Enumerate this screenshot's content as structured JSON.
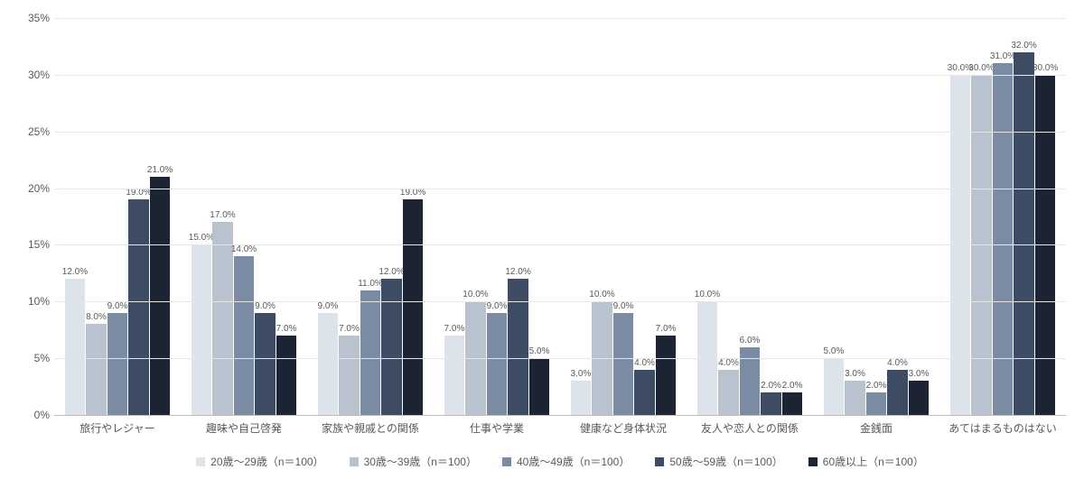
{
  "chart": {
    "type": "bar",
    "ylim": [
      0,
      35
    ],
    "ytick_step": 5,
    "y_suffix": "%",
    "grid_color": "#e6e6e6",
    "axis_color": "#bfbfbf",
    "background_color": "#ffffff",
    "label_fontsize": 12,
    "value_fontsize": 10,
    "series": [
      {
        "label": "20歳～29歳（n＝100）",
        "color": "#dde3ea"
      },
      {
        "label": "30歳～39歳（n＝100）",
        "color": "#b9c3d0"
      },
      {
        "label": "40歳～49歳（n＝100）",
        "color": "#7a8ba3"
      },
      {
        "label": "50歳～59歳（n＝100）",
        "color": "#3d4c63"
      },
      {
        "label": "60歳以上（n＝100）",
        "color": "#1c2433"
      }
    ],
    "categories": [
      {
        "label": "旅行やレジャー",
        "values": [
          12.0,
          8.0,
          9.0,
          19.0,
          21.0
        ]
      },
      {
        "label": "趣味や自己啓発",
        "values": [
          15.0,
          17.0,
          14.0,
          9.0,
          7.0
        ]
      },
      {
        "label": "家族や親戚との関係",
        "values": [
          9.0,
          7.0,
          11.0,
          12.0,
          19.0
        ]
      },
      {
        "label": "仕事や学業",
        "values": [
          7.0,
          10.0,
          9.0,
          12.0,
          5.0
        ]
      },
      {
        "label": "健康など身体状況",
        "values": [
          3.0,
          10.0,
          9.0,
          4.0,
          7.0
        ]
      },
      {
        "label": "友人や恋人との関係",
        "values": [
          10.0,
          4.0,
          6.0,
          2.0,
          2.0
        ]
      },
      {
        "label": "金銭面",
        "values": [
          5.0,
          3.0,
          2.0,
          4.0,
          3.0
        ]
      },
      {
        "label": "あてはまるものはない",
        "values": [
          30.0,
          30.0,
          31.0,
          32.0,
          30.0
        ]
      }
    ]
  }
}
